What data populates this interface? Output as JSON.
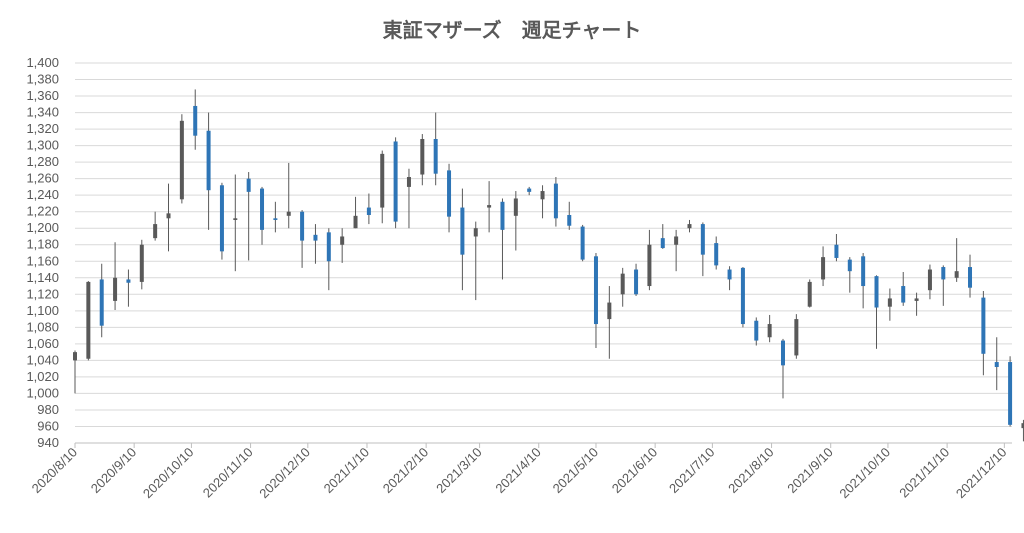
{
  "chart_data": {
    "type": "candlestick",
    "title": "東証マザーズ　週足チャート",
    "xlabel": "",
    "ylabel": "",
    "ylim": [
      940,
      1400
    ],
    "y_tick_step": 20,
    "y_ticks": [
      "940",
      "960",
      "980",
      "1,000",
      "1,020",
      "1,040",
      "1,060",
      "1,080",
      "1,100",
      "1,120",
      "1,140",
      "1,160",
      "1,180",
      "1,200",
      "1,220",
      "1,240",
      "1,260",
      "1,280",
      "1,300",
      "1,320",
      "1,340",
      "1,360",
      "1,380",
      "1,400"
    ],
    "x_tick_labels": [
      "2020/8/10",
      "2020/9/10",
      "2020/10/10",
      "2020/11/10",
      "2020/12/10",
      "2021/1/10",
      "2021/2/10",
      "2021/3/10",
      "2021/4/10",
      "2021/5/10",
      "2021/6/10",
      "2021/7/10",
      "2021/8/10",
      "2021/9/10",
      "2021/10/10",
      "2021/11/10",
      "2021/12/10"
    ],
    "x_range_days": [
      0,
      491
    ],
    "horizontal_grid": true,
    "vertical_grid": false,
    "colors": {
      "up": "#595959",
      "down": "#2e75b6",
      "grid": "#d9d9d9",
      "axis": "#bfbfbf",
      "text": "#595959"
    },
    "candles": [
      {
        "date": "2020/8/10",
        "open": 1040,
        "high": 1052,
        "low": 1000,
        "close": 1050
      },
      {
        "date": "2020/8/17",
        "open": 1042,
        "high": 1136,
        "low": 1040,
        "close": 1135
      },
      {
        "date": "2020/8/24",
        "open": 1138,
        "high": 1157,
        "low": 1068,
        "close": 1082
      },
      {
        "date": "2020/8/31",
        "open": 1112,
        "high": 1183,
        "low": 1101,
        "close": 1140
      },
      {
        "date": "2020/9/7",
        "open": 1138,
        "high": 1150,
        "low": 1105,
        "close": 1134
      },
      {
        "date": "2020/9/14",
        "open": 1135,
        "high": 1186,
        "low": 1126,
        "close": 1180
      },
      {
        "date": "2020/9/21",
        "open": 1188,
        "high": 1220,
        "low": 1185,
        "close": 1205
      },
      {
        "date": "2020/9/28",
        "open": 1212,
        "high": 1254,
        "low": 1172,
        "close": 1218
      },
      {
        "date": "2020/10/5",
        "open": 1235,
        "high": 1338,
        "low": 1230,
        "close": 1330
      },
      {
        "date": "2020/10/12",
        "open": 1348,
        "high": 1368,
        "low": 1295,
        "close": 1312
      },
      {
        "date": "2020/10/19",
        "open": 1318,
        "high": 1340,
        "low": 1198,
        "close": 1246
      },
      {
        "date": "2020/10/26",
        "open": 1252,
        "high": 1255,
        "low": 1162,
        "close": 1172
      },
      {
        "date": "2020/11/2",
        "open": 1210,
        "high": 1265,
        "low": 1148,
        "close": 1212
      },
      {
        "date": "2020/11/9",
        "open": 1260,
        "high": 1268,
        "low": 1161,
        "close": 1244
      },
      {
        "date": "2020/11/16",
        "open": 1248,
        "high": 1250,
        "low": 1180,
        "close": 1198
      },
      {
        "date": "2020/11/23",
        "open": 1212,
        "high": 1232,
        "low": 1195,
        "close": 1210
      },
      {
        "date": "2020/11/30",
        "open": 1215,
        "high": 1279,
        "low": 1200,
        "close": 1220
      },
      {
        "date": "2020/12/7",
        "open": 1220,
        "high": 1222,
        "low": 1152,
        "close": 1185
      },
      {
        "date": "2020/12/14",
        "open": 1192,
        "high": 1205,
        "low": 1157,
        "close": 1185
      },
      {
        "date": "2020/12/21",
        "open": 1195,
        "high": 1200,
        "low": 1125,
        "close": 1160
      },
      {
        "date": "2020/12/28",
        "open": 1180,
        "high": 1200,
        "low": 1158,
        "close": 1190
      },
      {
        "date": "2021/1/4",
        "open": 1200,
        "high": 1238,
        "low": 1200,
        "close": 1215
      },
      {
        "date": "2021/1/11",
        "open": 1225,
        "high": 1242,
        "low": 1205,
        "close": 1216
      },
      {
        "date": "2021/1/18",
        "open": 1225,
        "high": 1294,
        "low": 1206,
        "close": 1290
      },
      {
        "date": "2021/1/25",
        "open": 1305,
        "high": 1310,
        "low": 1200,
        "close": 1208
      },
      {
        "date": "2021/2/1",
        "open": 1250,
        "high": 1272,
        "low": 1200,
        "close": 1262
      },
      {
        "date": "2021/2/8",
        "open": 1265,
        "high": 1314,
        "low": 1252,
        "close": 1308
      },
      {
        "date": "2021/2/15",
        "open": 1308,
        "high": 1340,
        "low": 1252,
        "close": 1266
      },
      {
        "date": "2021/2/22",
        "open": 1270,
        "high": 1278,
        "low": 1195,
        "close": 1214
      },
      {
        "date": "2021/3/1",
        "open": 1225,
        "high": 1248,
        "low": 1125,
        "close": 1168
      },
      {
        "date": "2021/3/8",
        "open": 1190,
        "high": 1208,
        "low": 1113,
        "close": 1200
      },
      {
        "date": "2021/3/15",
        "open": 1225,
        "high": 1257,
        "low": 1195,
        "close": 1228
      },
      {
        "date": "2021/3/22",
        "open": 1232,
        "high": 1236,
        "low": 1138,
        "close": 1198
      },
      {
        "date": "2021/3/29",
        "open": 1215,
        "high": 1245,
        "low": 1173,
        "close": 1236
      },
      {
        "date": "2021/4/5",
        "open": 1248,
        "high": 1250,
        "low": 1240,
        "close": 1244
      },
      {
        "date": "2021/4/12",
        "open": 1235,
        "high": 1252,
        "low": 1212,
        "close": 1245
      },
      {
        "date": "2021/4/19",
        "open": 1254,
        "high": 1262,
        "low": 1202,
        "close": 1212
      },
      {
        "date": "2021/4/26",
        "open": 1216,
        "high": 1232,
        "low": 1198,
        "close": 1203
      },
      {
        "date": "2021/5/3",
        "open": 1202,
        "high": 1204,
        "low": 1160,
        "close": 1162
      },
      {
        "date": "2021/5/10",
        "open": 1166,
        "high": 1170,
        "low": 1055,
        "close": 1084
      },
      {
        "date": "2021/5/17",
        "open": 1090,
        "high": 1130,
        "low": 1042,
        "close": 1110
      },
      {
        "date": "2021/5/24",
        "open": 1120,
        "high": 1152,
        "low": 1105,
        "close": 1145
      },
      {
        "date": "2021/5/31",
        "open": 1150,
        "high": 1157,
        "low": 1118,
        "close": 1120
      },
      {
        "date": "2021/6/7",
        "open": 1130,
        "high": 1198,
        "low": 1125,
        "close": 1180
      },
      {
        "date": "2021/6/14",
        "open": 1188,
        "high": 1205,
        "low": 1175,
        "close": 1176
      },
      {
        "date": "2021/6/21",
        "open": 1180,
        "high": 1198,
        "low": 1148,
        "close": 1190
      },
      {
        "date": "2021/6/28",
        "open": 1200,
        "high": 1210,
        "low": 1195,
        "close": 1205
      },
      {
        "date": "2021/7/5",
        "open": 1205,
        "high": 1207,
        "low": 1142,
        "close": 1168
      },
      {
        "date": "2021/7/12",
        "open": 1182,
        "high": 1190,
        "low": 1150,
        "close": 1155
      },
      {
        "date": "2021/7/19",
        "open": 1150,
        "high": 1154,
        "low": 1125,
        "close": 1138
      },
      {
        "date": "2021/7/26",
        "open": 1152,
        "high": 1153,
        "low": 1080,
        "close": 1084
      },
      {
        "date": "2021/8/2",
        "open": 1088,
        "high": 1092,
        "low": 1058,
        "close": 1064
      },
      {
        "date": "2021/8/9",
        "open": 1068,
        "high": 1095,
        "low": 1062,
        "close": 1084
      },
      {
        "date": "2021/8/16",
        "open": 1064,
        "high": 1066,
        "low": 994,
        "close": 1034
      },
      {
        "date": "2021/8/23",
        "open": 1046,
        "high": 1096,
        "low": 1042,
        "close": 1090
      },
      {
        "date": "2021/8/30",
        "open": 1105,
        "high": 1138,
        "low": 1104,
        "close": 1135
      },
      {
        "date": "2021/9/6",
        "open": 1138,
        "high": 1178,
        "low": 1130,
        "close": 1165
      },
      {
        "date": "2021/9/13",
        "open": 1180,
        "high": 1193,
        "low": 1160,
        "close": 1164
      },
      {
        "date": "2021/9/20",
        "open": 1162,
        "high": 1165,
        "low": 1122,
        "close": 1148
      },
      {
        "date": "2021/9/27",
        "open": 1166,
        "high": 1170,
        "low": 1103,
        "close": 1130
      },
      {
        "date": "2021/10/4",
        "open": 1142,
        "high": 1143,
        "low": 1054,
        "close": 1104
      },
      {
        "date": "2021/10/11",
        "open": 1105,
        "high": 1127,
        "low": 1088,
        "close": 1115
      },
      {
        "date": "2021/10/18",
        "open": 1130,
        "high": 1147,
        "low": 1106,
        "close": 1110
      },
      {
        "date": "2021/10/25",
        "open": 1112,
        "high": 1122,
        "low": 1094,
        "close": 1115
      },
      {
        "date": "2021/11/1",
        "open": 1125,
        "high": 1156,
        "low": 1114,
        "close": 1150
      },
      {
        "date": "2021/11/8",
        "open": 1153,
        "high": 1155,
        "low": 1106,
        "close": 1138
      },
      {
        "date": "2021/11/15",
        "open": 1140,
        "high": 1188,
        "low": 1135,
        "close": 1148
      },
      {
        "date": "2021/11/22",
        "open": 1153,
        "high": 1168,
        "low": 1116,
        "close": 1128
      },
      {
        "date": "2021/11/29",
        "open": 1116,
        "high": 1124,
        "low": 1022,
        "close": 1048
      },
      {
        "date": "2021/12/6",
        "open": 1038,
        "high": 1068,
        "low": 1004,
        "close": 1032
      },
      {
        "date": "2021/12/13",
        "open": 1038,
        "high": 1045,
        "low": 960,
        "close": 962
      },
      {
        "date": "2021/12/20",
        "open": 958,
        "high": 968,
        "low": 942,
        "close": 964
      }
    ]
  }
}
